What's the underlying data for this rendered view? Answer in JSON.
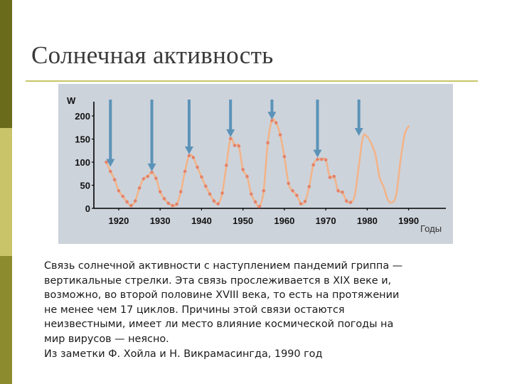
{
  "slide": {
    "title": "Солнечная активность",
    "caption_lines": [
      "Связь солнечной активности с наступлением пандемий гриппа —",
      "вертикальные стрелки. Эта связь прослеживается в XIX веке и,",
      "возможно, во второй половине XVIII века, то есть на протяжении",
      "не менее чем 17 циклов. Причины этой связи остаются",
      "неизвестными, имеет ли место влияние космической погоды на",
      "мир вирусов — неясно.",
      "Из заметки Ф. Хойла и Н. Викрамасингда, 1990 год"
    ]
  },
  "chart_data": {
    "type": "line",
    "ylabel": "W",
    "xlabel": "Годы",
    "xlim": [
      1914,
      1999
    ],
    "ylim": [
      0,
      200
    ],
    "x_ticks": [
      1920,
      1930,
      1940,
      1950,
      1960,
      1970,
      1980,
      1990
    ],
    "y_ticks": [
      0,
      50,
      100,
      150,
      200
    ],
    "grid": false,
    "colors": {
      "background": "#cdd3db",
      "line": "#f2b48a",
      "points": "#e4836a",
      "arrows": "#5b93b8",
      "axis": "#000000"
    },
    "series": [
      {
        "values": [
          [
            1917,
            100
          ],
          [
            1918,
            80
          ],
          [
            1919,
            62
          ],
          [
            1920,
            38
          ],
          [
            1921,
            26
          ],
          [
            1922,
            14
          ],
          [
            1923,
            6
          ],
          [
            1924,
            16
          ],
          [
            1925,
            44
          ],
          [
            1926,
            64
          ],
          [
            1927,
            69
          ],
          [
            1928,
            78
          ],
          [
            1929,
            65
          ],
          [
            1930,
            36
          ],
          [
            1931,
            21
          ],
          [
            1932,
            11
          ],
          [
            1933,
            6
          ],
          [
            1934,
            9
          ],
          [
            1935,
            36
          ],
          [
            1936,
            80
          ],
          [
            1937,
            114
          ],
          [
            1938,
            110
          ],
          [
            1939,
            89
          ],
          [
            1940,
            68
          ],
          [
            1941,
            48
          ],
          [
            1942,
            31
          ],
          [
            1943,
            16
          ],
          [
            1944,
            10
          ],
          [
            1945,
            33
          ],
          [
            1946,
            93
          ],
          [
            1947,
            151
          ],
          [
            1948,
            136
          ],
          [
            1949,
            135
          ],
          [
            1950,
            84
          ],
          [
            1951,
            69
          ],
          [
            1952,
            31
          ],
          [
            1953,
            14
          ],
          [
            1954,
            4
          ],
          [
            1955,
            38
          ],
          [
            1956,
            142
          ],
          [
            1957,
            190
          ],
          [
            1958,
            185
          ],
          [
            1959,
            159
          ],
          [
            1960,
            112
          ],
          [
            1961,
            54
          ],
          [
            1962,
            38
          ],
          [
            1963,
            28
          ],
          [
            1964,
            10
          ],
          [
            1965,
            15
          ],
          [
            1966,
            47
          ],
          [
            1967,
            94
          ],
          [
            1968,
            106
          ],
          [
            1969,
            106
          ],
          [
            1970,
            105
          ],
          [
            1971,
            67
          ],
          [
            1972,
            69
          ],
          [
            1973,
            38
          ],
          [
            1974,
            35
          ],
          [
            1975,
            16
          ],
          [
            1976,
            13
          ],
          [
            1977,
            28
          ],
          [
            1978,
            93
          ],
          [
            1979,
            155
          ],
          [
            1980,
            155
          ],
          [
            1981,
            140
          ],
          [
            1982,
            116
          ],
          [
            1983,
            67
          ],
          [
            1984,
            46
          ],
          [
            1985,
            18
          ],
          [
            1986,
            13
          ],
          [
            1987,
            29
          ],
          [
            1988,
            100
          ],
          [
            1989,
            158
          ],
          [
            1990,
            178
          ]
        ]
      }
    ],
    "marked_points_until": 1976,
    "pandemic_arrows": [
      {
        "year": 1918,
        "level": 90
      },
      {
        "year": 1928,
        "level": 80
      },
      {
        "year": 1937,
        "level": 117
      },
      {
        "year": 1947,
        "level": 154
      },
      {
        "year": 1957,
        "level": 192
      },
      {
        "year": 1968,
        "level": 110
      },
      {
        "year": 1978,
        "level": 157
      }
    ]
  }
}
